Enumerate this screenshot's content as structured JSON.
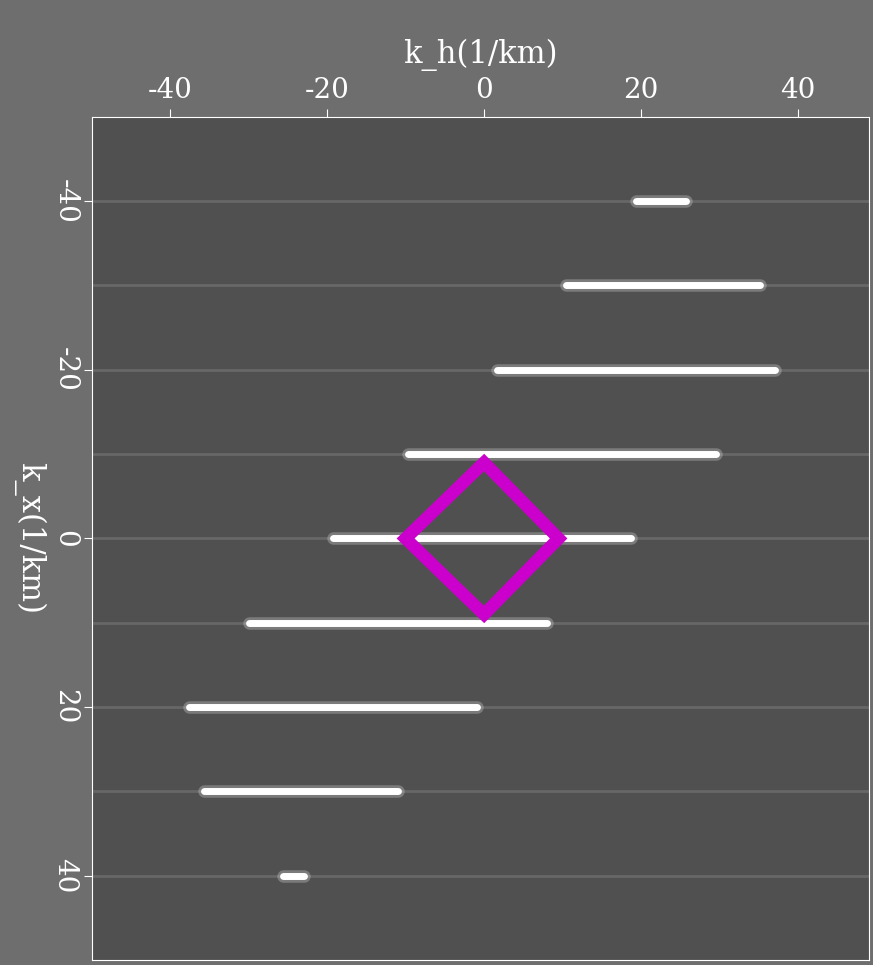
{
  "chart_data": {
    "type": "image",
    "xlabel": "k_h(1/km)",
    "ylabel": "k_x(1/km)",
    "xlim": [
      -50,
      49
    ],
    "ylim": [
      50,
      -50
    ],
    "xticks": [
      -40,
      -20,
      0,
      20,
      40
    ],
    "yticks": [
      -40,
      -20,
      0,
      20,
      40
    ],
    "streaks": {
      "k_x": [
        -40,
        -30,
        -20,
        -10,
        0,
        10,
        20,
        30,
        40
      ],
      "k_h_start": [
        19.4,
        10.5,
        1.6,
        -9.7,
        -19.2,
        -30,
        -37.6,
        -35.7,
        -25.6
      ],
      "k_h_end": [
        25.7,
        35.2,
        37.1,
        29.5,
        18.7,
        8,
        -0.9,
        -11,
        -23
      ]
    },
    "color": "#ffffff",
    "polygon": {
      "k_h": [
        -10,
        0,
        9.5,
        0
      ],
      "k_x": [
        0,
        -9,
        0,
        9
      ],
      "color": "#cc00cc"
    }
  }
}
